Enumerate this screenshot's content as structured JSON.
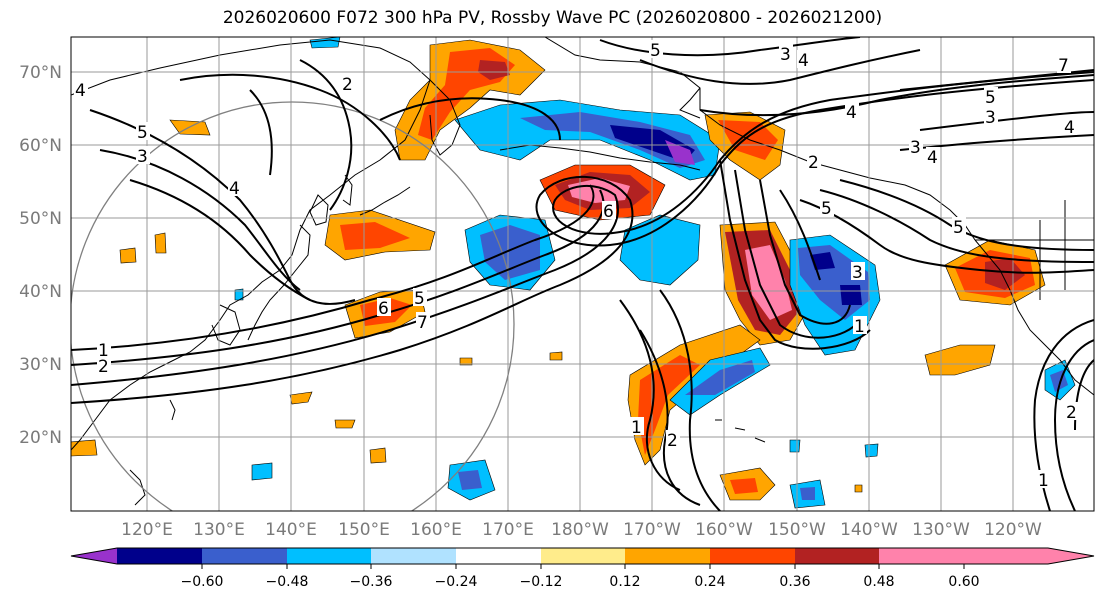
{
  "title": "2026020600 F072 300 hPa PV, Rossby Wave PC (2026020800 - 2026021200)",
  "lat_labels": [
    "70°N",
    "60°N",
    "50°N",
    "40°N",
    "30°N",
    "20°N"
  ],
  "lon_labels": [
    "120°E",
    "130°E",
    "140°E",
    "150°E",
    "160°E",
    "170°E",
    "180°W",
    "170°W",
    "160°W",
    "150°W",
    "140°W",
    "130°W",
    "120°W"
  ],
  "contour_labels": [
    "1",
    "2",
    "3",
    "4",
    "5",
    "6",
    "7"
  ],
  "colorbar": {
    "ticks": [
      "−0.60",
      "−0.48",
      "−0.36",
      "−0.24",
      "−0.12",
      "0.12",
      "0.24",
      "0.36",
      "0.48",
      "0.60"
    ],
    "colors": [
      "#9932cc",
      "#00008b",
      "#3a5fcd",
      "#00bfff",
      "#b0e2ff",
      "#ffffff",
      "#ffec8b",
      "#ffa500",
      "#ff4500",
      "#b22222",
      "#ff82ab"
    ]
  },
  "colors": {
    "coast": "#000000",
    "grid": "#9a9a9a",
    "contour": "#000000"
  }
}
